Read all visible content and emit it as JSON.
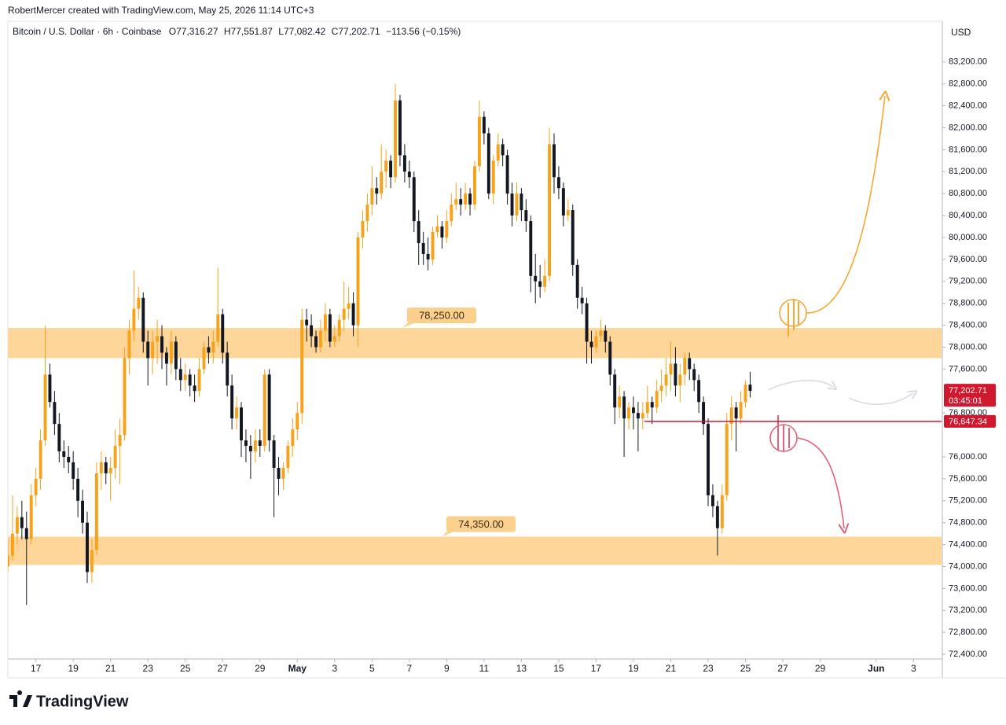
{
  "header": {
    "credit": "RobertMercer created with TradingView.com, May 25, 2026 11:14 UTC+3",
    "symbol": "Bitcoin / U.S. Dollar · 6h · Coinbase",
    "fields": [
      {
        "key": "O",
        "value": "77,316.27"
      },
      {
        "key": "H",
        "value": "77,551.87"
      },
      {
        "key": "L",
        "value": "77,082.42"
      },
      {
        "key": "C",
        "value": "77,202.71"
      }
    ],
    "change": "−113.56 (−0.15%)",
    "currency": "USD"
  },
  "footer": {
    "logo": "TradingView"
  },
  "chart_data": {
    "type": "candlestick",
    "up_color": "#f7a21b",
    "down_color": "#131722",
    "xlim": [
      0,
      200
    ],
    "ylim": [
      72315,
      83943
    ],
    "xticks": [
      {
        "value": 6,
        "label": "17"
      },
      {
        "value": 14,
        "label": "19"
      },
      {
        "value": 22,
        "label": "21"
      },
      {
        "value": 30,
        "label": "23"
      },
      {
        "value": 38,
        "label": "25"
      },
      {
        "value": 46,
        "label": "27"
      },
      {
        "value": 54,
        "label": "29"
      },
      {
        "value": 62,
        "label": "May"
      },
      {
        "value": 70,
        "label": "3"
      },
      {
        "value": 78,
        "label": "5"
      },
      {
        "value": 86,
        "label": "7"
      },
      {
        "value": 94,
        "label": "9"
      },
      {
        "value": 102,
        "label": "11"
      },
      {
        "value": 110,
        "label": "13"
      },
      {
        "value": 118,
        "label": "15"
      },
      {
        "value": 126,
        "label": "17"
      },
      {
        "value": 134,
        "label": "19"
      },
      {
        "value": 142,
        "label": "21"
      },
      {
        "value": 150,
        "label": "23"
      },
      {
        "value": 158,
        "label": "25"
      },
      {
        "value": 166,
        "label": "27"
      },
      {
        "value": 174,
        "label": "29"
      },
      {
        "value": 186,
        "label": "Jun"
      },
      {
        "value": 194,
        "label": "3"
      }
    ],
    "yticks": [
      {
        "value": 72400,
        "label": "72,400.00"
      },
      {
        "value": 72800,
        "label": "72,800.00"
      },
      {
        "value": 73200,
        "label": "73,200.00"
      },
      {
        "value": 73600,
        "label": "73,600.00"
      },
      {
        "value": 74000,
        "label": "74,000.00"
      },
      {
        "value": 74400,
        "label": "74,400.00"
      },
      {
        "value": 74800,
        "label": "74,800.00"
      },
      {
        "value": 75200,
        "label": "75,200.00"
      },
      {
        "value": 75600,
        "label": "75,600.00"
      },
      {
        "value": 76000,
        "label": "76,000.00"
      },
      {
        "value": 76800,
        "label": "76,800.00"
      },
      {
        "value": 77600,
        "label": "77,600.00"
      },
      {
        "value": 78000,
        "label": "78,000.00"
      },
      {
        "value": 78400,
        "label": "78,400.00"
      },
      {
        "value": 78800,
        "label": "78,800.00"
      },
      {
        "value": 79200,
        "label": "79,200.00"
      },
      {
        "value": 79600,
        "label": "79,600.00"
      },
      {
        "value": 80000,
        "label": "80,000.00"
      },
      {
        "value": 80400,
        "label": "80,400.00"
      },
      {
        "value": 80800,
        "label": "80,800.00"
      },
      {
        "value": 81200,
        "label": "81,200.00"
      },
      {
        "value": 81600,
        "label": "81,600.00"
      },
      {
        "value": 82000,
        "label": "82,000.00"
      },
      {
        "value": 82400,
        "label": "82,400.00"
      },
      {
        "value": 82800,
        "label": "82,800.00"
      },
      {
        "value": 83200,
        "label": "83,200.00"
      }
    ],
    "zones": [
      {
        "label": "78,250.00",
        "from": 77800,
        "to": 78350,
        "color": "#fed699"
      },
      {
        "label": "74,350.00",
        "from": 74030,
        "to": 74545,
        "color": "#fed699"
      }
    ],
    "level": {
      "value": 76647.34,
      "label": "76,647.34",
      "color": "#d0182e"
    },
    "last_price": {
      "value": 77202.71,
      "label": "77,202.71",
      "countdown": "03:45:01",
      "color": "#d0182e"
    },
    "ohlc": [
      [
        74000,
        74500,
        73900,
        74200
      ],
      [
        74200,
        75300,
        74100,
        74600
      ],
      [
        74600,
        75100,
        74400,
        74900
      ],
      [
        74900,
        75200,
        74500,
        74700
      ],
      [
        74700,
        75000,
        73300,
        74500
      ],
      [
        74500,
        75500,
        74400,
        75300
      ],
      [
        75300,
        75800,
        75100,
        75600
      ],
      [
        75600,
        76500,
        75400,
        76300
      ],
      [
        76300,
        78400,
        76200,
        77500
      ],
      [
        77500,
        77700,
        76900,
        77000
      ],
      [
        77000,
        77200,
        76400,
        76600
      ],
      [
        76600,
        76800,
        75900,
        76100
      ],
      [
        76100,
        76300,
        75800,
        76000
      ],
      [
        76000,
        76200,
        75700,
        75900
      ],
      [
        75900,
        76100,
        75400,
        75600
      ],
      [
        75600,
        75800,
        74900,
        75200
      ],
      [
        75200,
        75400,
        74600,
        74800
      ],
      [
        74800,
        75000,
        73700,
        73900
      ],
      [
        73900,
        74500,
        73700,
        74300
      ],
      [
        74300,
        75900,
        74200,
        75700
      ],
      [
        75700,
        76100,
        75400,
        75900
      ],
      [
        75900,
        76000,
        75500,
        75700
      ],
      [
        75700,
        76000,
        75200,
        75800
      ],
      [
        75800,
        76500,
        75600,
        76200
      ],
      [
        76200,
        76700,
        75500,
        76400
      ],
      [
        76400,
        78000,
        76300,
        77800
      ],
      [
        77800,
        78500,
        77500,
        78300
      ],
      [
        78300,
        79400,
        78100,
        78700
      ],
      [
        78700,
        79100,
        78500,
        78900
      ],
      [
        78900,
        79000,
        77900,
        78100
      ],
      [
        78100,
        78300,
        77300,
        77800
      ],
      [
        77800,
        78300,
        77500,
        78100
      ],
      [
        78100,
        78500,
        77700,
        78200
      ],
      [
        78200,
        78400,
        77600,
        77900
      ],
      [
        77900,
        78000,
        77300,
        77700
      ],
      [
        77700,
        78300,
        77500,
        78100
      ],
      [
        78100,
        78200,
        77400,
        77600
      ],
      [
        77600,
        77800,
        77200,
        77400
      ],
      [
        77400,
        77700,
        77200,
        77500
      ],
      [
        77500,
        77600,
        77100,
        77300
      ],
      [
        77300,
        77500,
        77000,
        77200
      ],
      [
        77200,
        77800,
        77100,
        77600
      ],
      [
        77600,
        78100,
        77500,
        78000
      ],
      [
        78000,
        78200,
        77700,
        77900
      ],
      [
        77900,
        78300,
        77700,
        78100
      ],
      [
        78100,
        79450,
        78000,
        78600
      ],
      [
        78600,
        78700,
        77700,
        77900
      ],
      [
        77900,
        78100,
        77100,
        77300
      ],
      [
        77300,
        77500,
        76500,
        76700
      ],
      [
        76700,
        77100,
        76500,
        76900
      ],
      [
        76900,
        77000,
        76000,
        76300
      ],
      [
        76300,
        76500,
        75900,
        76200
      ],
      [
        76200,
        76400,
        75600,
        76100
      ],
      [
        76100,
        76500,
        75900,
        76300
      ],
      [
        76300,
        76500,
        76000,
        76200
      ],
      [
        76200,
        77600,
        76100,
        77500
      ],
      [
        77500,
        77600,
        76100,
        76300
      ],
      [
        76300,
        76400,
        74900,
        75800
      ],
      [
        75800,
        76000,
        75300,
        75600
      ],
      [
        75600,
        75900,
        75400,
        75800
      ],
      [
        75800,
        76300,
        75700,
        76200
      ],
      [
        76200,
        76700,
        76000,
        76500
      ],
      [
        76500,
        77000,
        76300,
        76800
      ],
      [
        76800,
        78700,
        76600,
        78500
      ],
      [
        78500,
        78700,
        78100,
        78400
      ],
      [
        78400,
        78600,
        78000,
        78200
      ],
      [
        78200,
        78300,
        77900,
        78000
      ],
      [
        78000,
        78500,
        77900,
        78300
      ],
      [
        78300,
        78800,
        78100,
        78600
      ],
      [
        78600,
        78700,
        78000,
        78100
      ],
      [
        78100,
        78400,
        78000,
        78200
      ],
      [
        78200,
        78600,
        78100,
        78500
      ],
      [
        78500,
        79200,
        78300,
        78700
      ],
      [
        78700,
        79100,
        78500,
        78800
      ],
      [
        78800,
        79000,
        78200,
        78400
      ],
      [
        78400,
        80100,
        78000,
        80000
      ],
      [
        80000,
        80500,
        79800,
        80300
      ],
      [
        80300,
        80800,
        80100,
        80600
      ],
      [
        80600,
        81300,
        80400,
        80900
      ],
      [
        80900,
        81100,
        80600,
        80800
      ],
      [
        80800,
        81700,
        80700,
        81200
      ],
      [
        81200,
        81600,
        80900,
        81400
      ],
      [
        81400,
        81500,
        80900,
        81100
      ],
      [
        81100,
        82800,
        81000,
        82500
      ],
      [
        82500,
        82600,
        81300,
        81500
      ],
      [
        81500,
        81700,
        81000,
        81200
      ],
      [
        81200,
        81400,
        80900,
        81100
      ],
      [
        81100,
        81200,
        80100,
        80300
      ],
      [
        80300,
        80500,
        79500,
        79900
      ],
      [
        79900,
        80100,
        79500,
        79700
      ],
      [
        79700,
        80000,
        79400,
        79600
      ],
      [
        79600,
        80200,
        79500,
        80100
      ],
      [
        80100,
        80400,
        80000,
        80200
      ],
      [
        80200,
        80300,
        79800,
        80000
      ],
      [
        80000,
        80500,
        79900,
        80300
      ],
      [
        80300,
        80800,
        80200,
        80600
      ],
      [
        80600,
        81000,
        80500,
        80700
      ],
      [
        80700,
        80900,
        80400,
        80600
      ],
      [
        80600,
        81000,
        80500,
        80800
      ],
      [
        80800,
        80900,
        80400,
        80600
      ],
      [
        80600,
        81400,
        80500,
        81300
      ],
      [
        81300,
        82500,
        81200,
        82200
      ],
      [
        82200,
        82300,
        81700,
        81900
      ],
      [
        81900,
        82000,
        80700,
        80800
      ],
      [
        80800,
        81500,
        80600,
        81400
      ],
      [
        81400,
        81900,
        81300,
        81700
      ],
      [
        81700,
        81800,
        81300,
        81500
      ],
      [
        81500,
        81600,
        80600,
        80800
      ],
      [
        80800,
        81000,
        80200,
        80400
      ],
      [
        80400,
        81000,
        80300,
        80800
      ],
      [
        80800,
        80900,
        80300,
        80500
      ],
      [
        80500,
        80700,
        80100,
        80300
      ],
      [
        80300,
        80400,
        79000,
        79300
      ],
      [
        79300,
        79700,
        78800,
        79200
      ],
      [
        79200,
        79500,
        78900,
        79100
      ],
      [
        79100,
        79600,
        79000,
        79300
      ],
      [
        79300,
        82000,
        79200,
        81700
      ],
      [
        81700,
        81900,
        80800,
        81100
      ],
      [
        81100,
        81300,
        80700,
        80900
      ],
      [
        80900,
        81000,
        80200,
        80400
      ],
      [
        80400,
        80700,
        80300,
        80500
      ],
      [
        80500,
        80600,
        79300,
        79500
      ],
      [
        79500,
        79600,
        78700,
        78900
      ],
      [
        78900,
        79100,
        78600,
        78800
      ],
      [
        78800,
        78900,
        77700,
        78100
      ],
      [
        78100,
        78300,
        77700,
        78000
      ],
      [
        78000,
        78300,
        77900,
        78200
      ],
      [
        78200,
        78500,
        78100,
        78300
      ],
      [
        78300,
        78400,
        77900,
        78100
      ],
      [
        78100,
        78200,
        77300,
        77500
      ],
      [
        77500,
        77600,
        76600,
        76900
      ],
      [
        76900,
        77300,
        76700,
        77100
      ],
      [
        77100,
        77200,
        76000,
        76700
      ],
      [
        76700,
        77000,
        76500,
        76900
      ],
      [
        76900,
        77100,
        76500,
        76800
      ],
      [
        76800,
        77000,
        76100,
        76700
      ],
      [
        76700,
        77000,
        76500,
        76800
      ],
      [
        76800,
        77300,
        76700,
        77000
      ],
      [
        77000,
        77100,
        76600,
        76900
      ],
      [
        76900,
        77400,
        76800,
        77200
      ],
      [
        77200,
        77600,
        77000,
        77300
      ],
      [
        77300,
        77800,
        77100,
        77500
      ],
      [
        77500,
        78100,
        77200,
        77700
      ],
      [
        77700,
        78000,
        77100,
        77300
      ],
      [
        77300,
        77700,
        77000,
        77500
      ],
      [
        77500,
        77900,
        77300,
        77800
      ],
      [
        77800,
        77900,
        77400,
        77600
      ],
      [
        77600,
        77700,
        77200,
        77400
      ],
      [
        77400,
        77500,
        76800,
        77000
      ],
      [
        77000,
        77100,
        76400,
        76600
      ],
      [
        76600,
        76700,
        75100,
        75300
      ],
      [
        75300,
        75500,
        74900,
        75100
      ],
      [
        75100,
        75200,
        74200,
        74700
      ],
      [
        74700,
        75500,
        74600,
        75300
      ],
      [
        75300,
        76800,
        75200,
        76600
      ],
      [
        76600,
        77100,
        76300,
        76900
      ],
      [
        76900,
        77000,
        76100,
        76700
      ],
      [
        76700,
        77200,
        76600,
        77000
      ],
      [
        77000,
        77400,
        76900,
        77316.27
      ],
      [
        77316.27,
        77551.87,
        77082.42,
        77202.71
      ]
    ]
  }
}
